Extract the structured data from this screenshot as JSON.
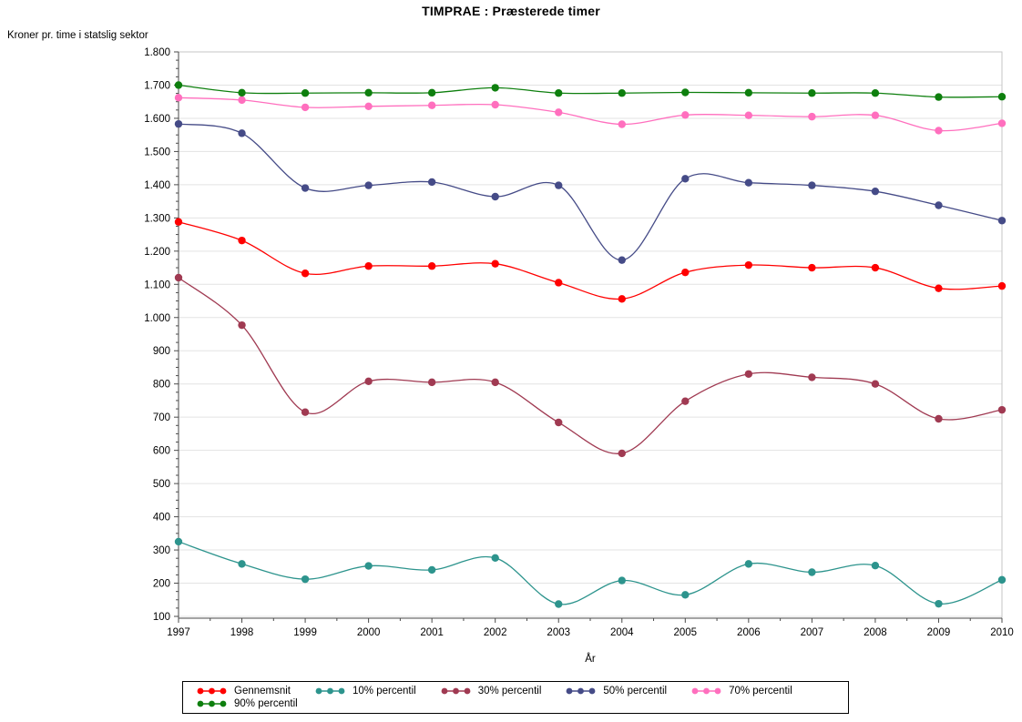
{
  "page": {
    "title": "TIMPRAE : Præsterede timer",
    "y_axis_title": "Kroner pr. time i statslig sektor",
    "x_axis_title": "År"
  },
  "chart_data": {
    "type": "line",
    "title": "TIMPRAE : Præsterede timer",
    "xlabel": "År",
    "ylabel": "Kroner pr. time i statslig sektor",
    "x": [
      1997,
      1998,
      1999,
      2000,
      2001,
      2002,
      2003,
      2004,
      2005,
      2006,
      2007,
      2008,
      2009,
      2010
    ],
    "xtick_labels": [
      "1997",
      "1998",
      "1999",
      "2000",
      "2001",
      "2002",
      "2003",
      "2004",
      "2005",
      "2006",
      "2007",
      "2008",
      "2009",
      "2010"
    ],
    "ylim": [
      100,
      1800
    ],
    "ytick_step": 100,
    "ytick_values": [
      1800,
      1700,
      1600,
      1500,
      1400,
      1300,
      1200,
      1100,
      1000,
      900,
      800,
      700,
      600,
      500,
      400,
      300,
      200,
      100
    ],
    "ytick_labels": [
      "1.800",
      "1.700",
      "1.600",
      "1.500",
      "1.400",
      "1.300",
      "1.200",
      "1.100",
      "1.000",
      "900",
      "800",
      "700",
      "600",
      "500",
      "400",
      "300",
      "200",
      "100"
    ],
    "grid": "horizontal-major",
    "legend_position": "bottom",
    "series": [
      {
        "name": "Gennemsnit",
        "color": "#FF0000",
        "values": [
          1288,
          1232,
          1133,
          1155,
          1155,
          1162,
          1105,
          1056,
          1136,
          1158,
          1150,
          1150,
          1088,
          1095
        ]
      },
      {
        "name": "10% percentil",
        "color": "#2D948D",
        "values": [
          325,
          258,
          212,
          252,
          240,
          276,
          137,
          208,
          165,
          258,
          233,
          253,
          138,
          210
        ]
      },
      {
        "name": "30% percentil",
        "color": "#A03A52",
        "values": [
          1120,
          977,
          715,
          808,
          805,
          805,
          684,
          591,
          748,
          830,
          820,
          800,
          695,
          722
        ]
      },
      {
        "name": "50% percentil",
        "color": "#454B87",
        "values": [
          1583,
          1555,
          1390,
          1398,
          1408,
          1364,
          1398,
          1173,
          1418,
          1406,
          1398,
          1380,
          1338,
          1292
        ]
      },
      {
        "name": "70% percentil",
        "color": "#FF6FBE",
        "values": [
          1662,
          1655,
          1633,
          1636,
          1639,
          1641,
          1618,
          1582,
          1610,
          1609,
          1605,
          1609,
          1563,
          1585
        ]
      },
      {
        "name": "90% percentil",
        "color": "#0E7F0E",
        "values": [
          1700,
          1677,
          1676,
          1677,
          1677,
          1692,
          1676,
          1676,
          1678,
          1677,
          1676,
          1676,
          1664,
          1665
        ]
      }
    ],
    "colors": {
      "grid": "#E3E3E3",
      "frame": "#C6C6C6",
      "axis": "#4A4A4A",
      "legend_border": "#000000"
    }
  }
}
